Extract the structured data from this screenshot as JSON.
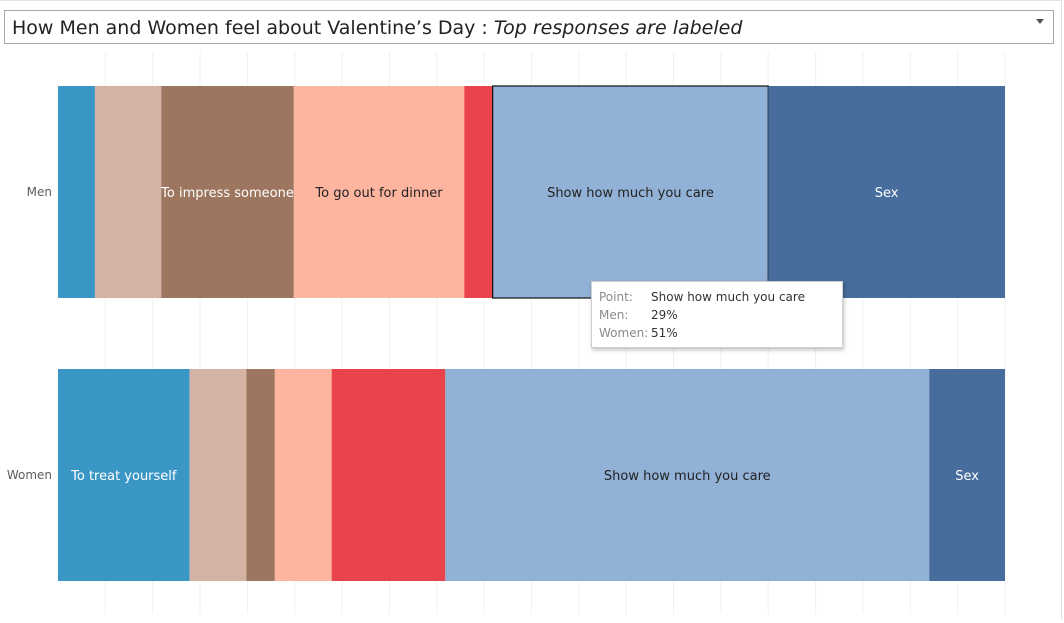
{
  "title": {
    "main": "How Men and Women feel about Valentine’s Day : ",
    "sub": "Top responses are labeled"
  },
  "icons": {
    "dropdown": "chevron-down-icon"
  },
  "chart_data": {
    "type": "bar",
    "orientation": "horizontal",
    "stacked": true,
    "percent_stacked": true,
    "categories": [
      "Men",
      "Women"
    ],
    "series": [
      {
        "key": "blue",
        "color": "#3a96c5",
        "values": [
          3.9,
          13.9
        ],
        "labels": [
          "",
          "To treat yourself"
        ],
        "text_color": "#ffffff"
      },
      {
        "key": "tan",
        "color": "#d4b3a5",
        "values": [
          7.0,
          6.0
        ],
        "labels": [
          "",
          ""
        ],
        "text_color": "#ffffff"
      },
      {
        "key": "brown",
        "color": "#9c765e",
        "values": [
          14.0,
          3.0
        ],
        "labels": [
          "To impress someone",
          ""
        ],
        "text_color": "#ffffff"
      },
      {
        "key": "peach",
        "color": "#fdb5a0",
        "values": [
          18.0,
          6.0
        ],
        "labels": [
          "To go out for dinner",
          ""
        ],
        "text_color": "#222222"
      },
      {
        "key": "red",
        "color": "#e9434b",
        "values": [
          3.0,
          12.0
        ],
        "labels": [
          "",
          ""
        ],
        "text_color": "#ffffff"
      },
      {
        "key": "light-blue",
        "color": "#92b1d6",
        "values": [
          29.1,
          51.1
        ],
        "labels": [
          "Show how much you care",
          "Show how much you care"
        ],
        "text_color": "#222222"
      },
      {
        "key": "dark-blue",
        "color": "#476d9d",
        "values": [
          25.0,
          8.0
        ],
        "labels": [
          "Sex",
          "Sex"
        ],
        "text_color": "#ffffff"
      }
    ],
    "highlight": {
      "category": "Men",
      "series": "light-blue"
    },
    "grid": "vertical",
    "axis_labels_shown": false
  },
  "tooltip": {
    "rows": [
      {
        "key": "Point:",
        "value": "Show how much you care"
      },
      {
        "key": "Men:",
        "value": "29%"
      },
      {
        "key": "Women:",
        "value": "51%"
      }
    ]
  }
}
